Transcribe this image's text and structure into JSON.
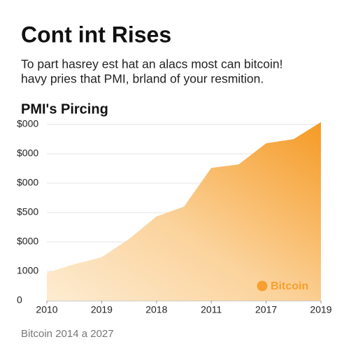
{
  "chart_data": {
    "type": "area",
    "title": "Cont int Rises",
    "subtitle": [
      "To part hasrey est hat an alacs most can bitcoin!",
      "havy pries that PMI, brland of your resmition."
    ],
    "chart_title": "PMI's Pircing",
    "caption": "Bitcoin 2014 a 2027",
    "x": [
      0,
      1,
      2,
      3,
      4,
      5,
      6,
      7,
      8,
      9,
      10
    ],
    "series": [
      {
        "name": "Bitcoin",
        "color": "#f5a030",
        "values": [
          950,
          1240,
          1480,
          2100,
          2870,
          3200,
          4520,
          4640,
          5360,
          5500,
          6080
        ]
      }
    ],
    "xlim": [
      0,
      10
    ],
    "xticks": [
      {
        "value": 0,
        "label": "2010"
      },
      {
        "value": 2,
        "label": "2019"
      },
      {
        "value": 4,
        "label": "2018"
      },
      {
        "value": 6,
        "label": "2011"
      },
      {
        "value": 8,
        "label": "2017"
      },
      {
        "value": 10,
        "label": "2019"
      }
    ],
    "ylim": [
      0,
      6000
    ],
    "yticks": [
      0,
      1000,
      {
        "value": 2000,
        "label": "$000"
      },
      {
        "value": 3000,
        "label": "$500"
      },
      {
        "value": 4000,
        "label": "$000"
      },
      {
        "value": 5000,
        "label": "$000"
      },
      {
        "value": 6000,
        "label": "$000"
      }
    ],
    "grid": true,
    "legend": "lower right"
  }
}
